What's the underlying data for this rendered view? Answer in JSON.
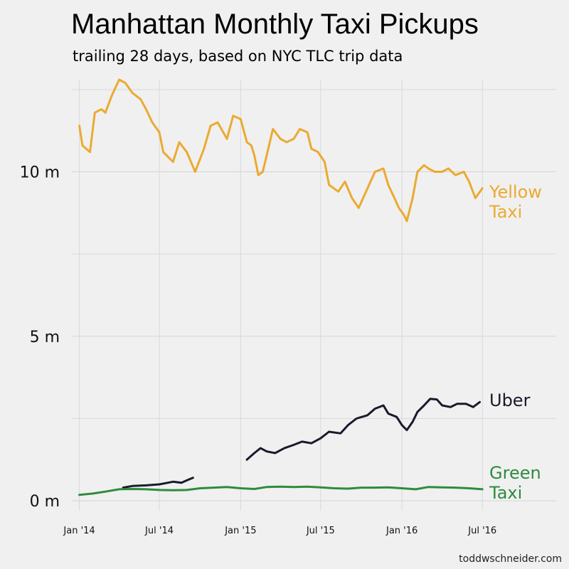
{
  "chart_data": {
    "type": "line",
    "title": "Manhattan Monthly Taxi Pickups",
    "subtitle": "trailing 28 days, based on NYC TLC trip data",
    "credit": "toddwschneider.com",
    "x_ticks": [
      "Jan '14",
      "Jul '14",
      "Jan '15",
      "Jul '15",
      "Jan '16",
      "Jul '16"
    ],
    "y_ticks": [
      "0 m",
      "5 m",
      "10 m"
    ],
    "y_tick_values": [
      0,
      5,
      10
    ],
    "y_minor_gridlines": [
      2.5,
      7.5,
      12.5
    ],
    "ylim": [
      -0.3,
      12.8
    ],
    "xlim": [
      "2013-12-15",
      "2016-12-15"
    ],
    "grid": true,
    "legend": "direct labels at right end of lines",
    "series": [
      {
        "name": "Yellow Taxi",
        "label_lines": [
          "Yellow",
          "Taxi"
        ],
        "color": "#ebaa30",
        "points": [
          [
            "2014-01-01",
            11.4
          ],
          [
            "2014-01-08",
            10.8
          ],
          [
            "2014-01-25",
            10.6
          ],
          [
            "2014-02-05",
            11.8
          ],
          [
            "2014-02-20",
            11.9
          ],
          [
            "2014-03-01",
            11.8
          ],
          [
            "2014-03-15",
            12.3
          ],
          [
            "2014-04-01",
            12.8
          ],
          [
            "2014-04-15",
            12.7
          ],
          [
            "2014-05-01",
            12.4
          ],
          [
            "2014-05-20",
            12.2
          ],
          [
            "2014-06-01",
            11.9
          ],
          [
            "2014-06-15",
            11.5
          ],
          [
            "2014-07-01",
            11.2
          ],
          [
            "2014-07-10",
            10.6
          ],
          [
            "2014-08-01",
            10.3
          ],
          [
            "2014-08-15",
            10.9
          ],
          [
            "2014-09-01",
            10.6
          ],
          [
            "2014-09-20",
            10.0
          ],
          [
            "2014-10-10",
            10.7
          ],
          [
            "2014-10-25",
            11.4
          ],
          [
            "2014-11-10",
            11.5
          ],
          [
            "2014-12-01",
            11.0
          ],
          [
            "2014-12-15",
            11.7
          ],
          [
            "2015-01-01",
            11.6
          ],
          [
            "2015-01-15",
            10.9
          ],
          [
            "2015-01-25",
            10.8
          ],
          [
            "2015-02-01",
            10.5
          ],
          [
            "2015-02-10",
            9.9
          ],
          [
            "2015-02-20",
            10.0
          ],
          [
            "2015-03-01",
            10.5
          ],
          [
            "2015-03-15",
            11.3
          ],
          [
            "2015-04-01",
            11.0
          ],
          [
            "2015-04-15",
            10.9
          ],
          [
            "2015-05-01",
            11.0
          ],
          [
            "2015-05-15",
            11.3
          ],
          [
            "2015-06-01",
            11.2
          ],
          [
            "2015-06-10",
            10.7
          ],
          [
            "2015-06-25",
            10.6
          ],
          [
            "2015-07-10",
            10.3
          ],
          [
            "2015-07-20",
            9.6
          ],
          [
            "2015-08-10",
            9.4
          ],
          [
            "2015-08-25",
            9.7
          ],
          [
            "2015-09-10",
            9.2
          ],
          [
            "2015-09-25",
            8.9
          ],
          [
            "2015-10-15",
            9.5
          ],
          [
            "2015-11-01",
            10.0
          ],
          [
            "2015-11-20",
            10.1
          ],
          [
            "2015-12-01",
            9.6
          ],
          [
            "2015-12-15",
            9.2
          ],
          [
            "2015-12-25",
            8.9
          ],
          [
            "2016-01-05",
            8.7
          ],
          [
            "2016-01-12",
            8.5
          ],
          [
            "2016-01-25",
            9.2
          ],
          [
            "2016-02-05",
            10.0
          ],
          [
            "2016-02-20",
            10.2
          ],
          [
            "2016-03-01",
            10.1
          ],
          [
            "2016-03-15",
            10.0
          ],
          [
            "2016-04-01",
            10.0
          ],
          [
            "2016-04-15",
            10.1
          ],
          [
            "2016-05-01",
            9.9
          ],
          [
            "2016-05-20",
            10.0
          ],
          [
            "2016-06-01",
            9.7
          ],
          [
            "2016-06-15",
            9.2
          ],
          [
            "2016-07-01",
            9.5
          ]
        ]
      },
      {
        "name": "Uber",
        "label_lines": [
          "Uber"
        ],
        "color": "#1a1a2e",
        "segments": [
          [
            [
              "2014-04-10",
              0.4
            ],
            [
              "2014-05-01",
              0.45
            ],
            [
              "2014-06-01",
              0.47
            ],
            [
              "2014-07-01",
              0.5
            ],
            [
              "2014-08-01",
              0.58
            ],
            [
              "2014-08-20",
              0.55
            ],
            [
              "2014-09-01",
              0.62
            ],
            [
              "2014-09-15",
              0.7
            ]
          ],
          [
            [
              "2015-01-15",
              1.25
            ],
            [
              "2015-02-01",
              1.45
            ],
            [
              "2015-02-15",
              1.6
            ],
            [
              "2015-03-01",
              1.5
            ],
            [
              "2015-03-20",
              1.45
            ],
            [
              "2015-04-10",
              1.6
            ],
            [
              "2015-05-01",
              1.7
            ],
            [
              "2015-05-20",
              1.8
            ],
            [
              "2015-06-10",
              1.75
            ],
            [
              "2015-07-01",
              1.9
            ],
            [
              "2015-07-20",
              2.1
            ],
            [
              "2015-08-15",
              2.05
            ],
            [
              "2015-09-01",
              2.3
            ],
            [
              "2015-09-20",
              2.5
            ],
            [
              "2015-10-15",
              2.6
            ],
            [
              "2015-11-01",
              2.8
            ],
            [
              "2015-11-20",
              2.9
            ],
            [
              "2015-12-01",
              2.65
            ],
            [
              "2015-12-20",
              2.55
            ],
            [
              "2016-01-01",
              2.3
            ],
            [
              "2016-01-12",
              2.15
            ],
            [
              "2016-01-25",
              2.4
            ],
            [
              "2016-02-05",
              2.7
            ],
            [
              "2016-02-20",
              2.9
            ],
            [
              "2016-03-05",
              3.1
            ],
            [
              "2016-03-20",
              3.08
            ],
            [
              "2016-04-01",
              2.9
            ],
            [
              "2016-04-20",
              2.85
            ],
            [
              "2016-05-05",
              2.95
            ],
            [
              "2016-05-25",
              2.95
            ],
            [
              "2016-06-10",
              2.85
            ],
            [
              "2016-06-25",
              3.0
            ]
          ]
        ]
      },
      {
        "name": "Green Taxi",
        "label_lines": [
          "Green",
          "Taxi"
        ],
        "color": "#2e8b3e",
        "points": [
          [
            "2014-01-01",
            0.18
          ],
          [
            "2014-02-01",
            0.22
          ],
          [
            "2014-03-01",
            0.28
          ],
          [
            "2014-04-01",
            0.35
          ],
          [
            "2014-05-01",
            0.36
          ],
          [
            "2014-06-01",
            0.35
          ],
          [
            "2014-07-01",
            0.33
          ],
          [
            "2014-08-01",
            0.32
          ],
          [
            "2014-09-01",
            0.33
          ],
          [
            "2014-10-01",
            0.38
          ],
          [
            "2014-11-01",
            0.4
          ],
          [
            "2014-12-01",
            0.42
          ],
          [
            "2015-01-01",
            0.38
          ],
          [
            "2015-02-01",
            0.36
          ],
          [
            "2015-03-01",
            0.42
          ],
          [
            "2015-04-01",
            0.43
          ],
          [
            "2015-05-01",
            0.42
          ],
          [
            "2015-06-01",
            0.43
          ],
          [
            "2015-07-01",
            0.41
          ],
          [
            "2015-08-01",
            0.38
          ],
          [
            "2015-09-01",
            0.37
          ],
          [
            "2015-10-01",
            0.4
          ],
          [
            "2015-11-01",
            0.4
          ],
          [
            "2015-12-01",
            0.41
          ],
          [
            "2016-01-01",
            0.38
          ],
          [
            "2016-02-01",
            0.35
          ],
          [
            "2016-03-01",
            0.42
          ],
          [
            "2016-04-01",
            0.41
          ],
          [
            "2016-05-01",
            0.4
          ],
          [
            "2016-06-01",
            0.38
          ],
          [
            "2016-07-01",
            0.35
          ]
        ]
      }
    ]
  }
}
